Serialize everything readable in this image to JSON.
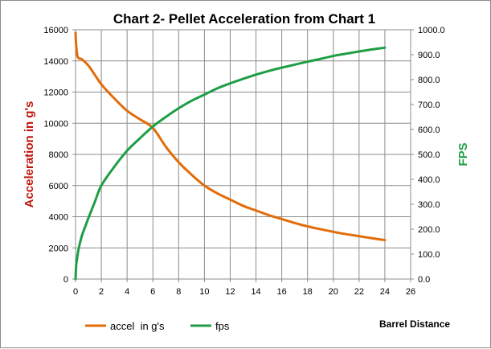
{
  "colors": {
    "accel": "#e36c0a",
    "fps": "#1e9e45",
    "left_axis_title": "#c0180e",
    "right_axis_title": "#1e9e45",
    "grid": "#8c8c8c",
    "axis": "#8c8c8c"
  },
  "chart_data": {
    "type": "line",
    "title": "Chart 2- Pellet Acceleration from Chart 1",
    "xlabel": "Barrel Distance",
    "ylabel": "Acceleration in g's",
    "y2label": "FPS",
    "xlim": [
      0,
      26
    ],
    "ylim": [
      0,
      16000
    ],
    "y2lim": [
      0,
      1000
    ],
    "grid": true,
    "legend_position": "bottom-left",
    "x_ticks": [
      "0",
      "2",
      "4",
      "6",
      "8",
      "10",
      "12",
      "14",
      "16",
      "18",
      "20",
      "22",
      "24",
      "26"
    ],
    "y_ticks": [
      "0",
      "2000",
      "4000",
      "6000",
      "8000",
      "10000",
      "12000",
      "14000",
      "16000"
    ],
    "y2_ticks": [
      "0.0",
      "100.0",
      "200.0",
      "300.0",
      "400.0",
      "500.0",
      "600.0",
      "700.0",
      "800.0",
      "900.0",
      "1000.0"
    ],
    "series": [
      {
        "name": "accel  in g's",
        "axis": "left",
        "x": [
          0,
          0.05,
          0.15,
          0.3,
          0.5,
          1,
          1.5,
          2,
          3,
          4,
          5,
          6,
          7,
          8,
          9,
          10,
          11,
          12,
          13,
          14,
          15,
          16,
          17,
          18,
          19,
          20,
          21,
          22,
          23,
          24
        ],
        "y": [
          15800,
          15000,
          14300,
          14150,
          14100,
          13700,
          13100,
          12500,
          11600,
          10800,
          10250,
          9700,
          8500,
          7500,
          6700,
          6000,
          5500,
          5100,
          4700,
          4400,
          4100,
          3850,
          3600,
          3380,
          3200,
          3030,
          2880,
          2750,
          2620,
          2500
        ]
      },
      {
        "name": "fps",
        "axis": "right",
        "x": [
          0,
          0.05,
          0.1,
          0.2,
          0.3,
          0.5,
          0.75,
          1,
          1.5,
          2,
          3,
          4,
          5,
          6,
          7,
          8,
          9,
          10,
          11,
          12,
          13,
          14,
          15,
          16,
          17,
          18,
          19,
          20,
          21,
          22,
          23,
          24
        ],
        "y": [
          0,
          55,
          75,
          110,
          135,
          175,
          210,
          245,
          310,
          375,
          450,
          515,
          565,
          612,
          650,
          685,
          715,
          740,
          765,
          785,
          803,
          820,
          835,
          848,
          860,
          872,
          883,
          895,
          904,
          913,
          921,
          928
        ]
      }
    ]
  }
}
